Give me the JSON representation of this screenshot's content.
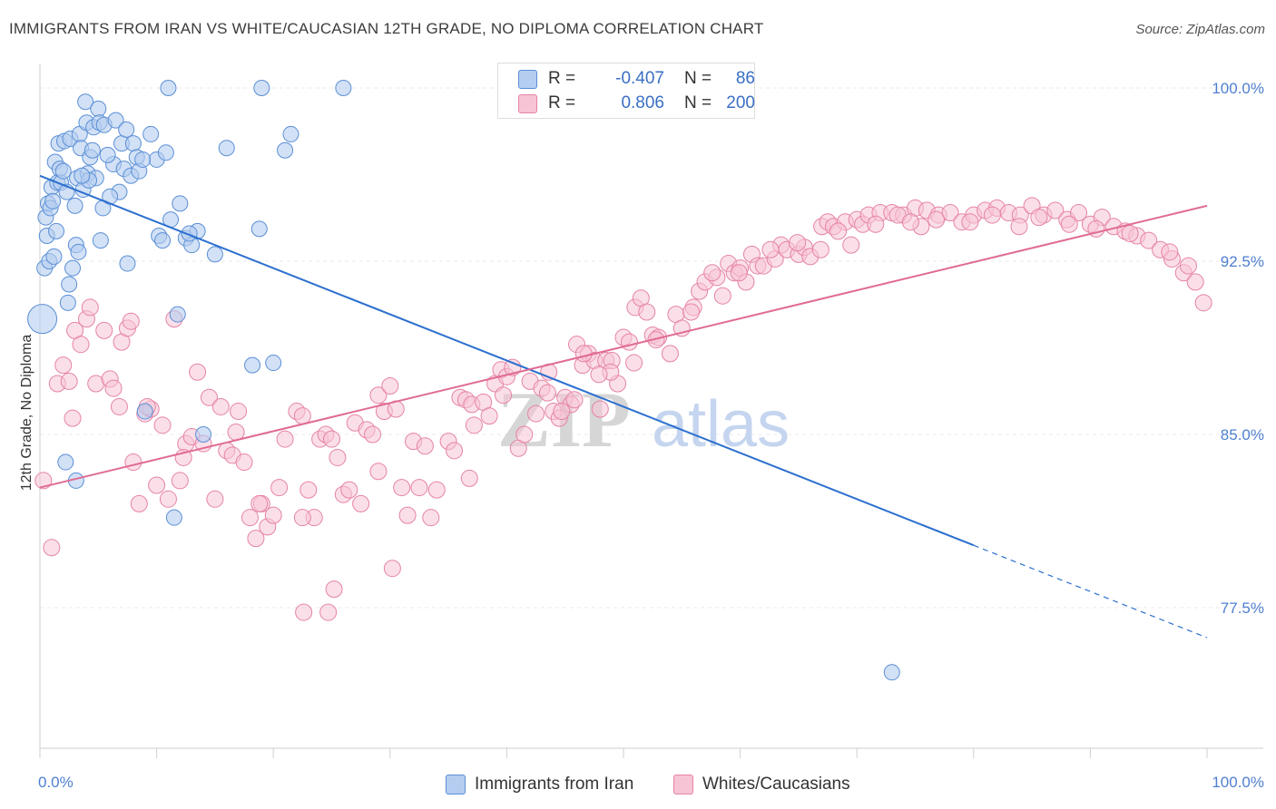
{
  "title": "IMMIGRANTS FROM IRAN VS WHITE/CAUCASIAN 12TH GRADE, NO DIPLOMA CORRELATION CHART",
  "source": "Source: ZipAtlas.com",
  "watermark": {
    "zip": "ZIP",
    "atlas": "atlas"
  },
  "legend": {
    "r_label": "R =",
    "n_label": "N =",
    "series": [
      {
        "name": "Immigrants from Iran",
        "r": "-0.407",
        "n": "86"
      },
      {
        "name": "Whites/Caucasians",
        "r": "0.806",
        "n": "200"
      }
    ]
  },
  "colors": {
    "blue": "#5b8fd6",
    "blue_fill": "#b4cdf0",
    "blue_line": "#2b6fce",
    "pink": "#e583a6",
    "pink_fill": "#f7c4d5",
    "pink_line": "#e06b93",
    "axis_text": "#4f7fd0",
    "grid": "#e8e8e8"
  },
  "chart_data": {
    "type": "scatter",
    "title": "IMMIGRANTS FROM IRAN VS WHITE/CAUCASIAN 12TH GRADE, NO DIPLOMA CORRELATION CHART",
    "xlabel": "",
    "ylabel": "12th Grade, No Diploma",
    "xlim": [
      0,
      100
    ],
    "ylim": [
      71.5,
      101.5
    ],
    "x_tick_labels": [
      "0.0%",
      "100.0%"
    ],
    "y_ticks": [
      77.5,
      85.0,
      92.5,
      100.0
    ],
    "y_tick_labels": [
      "77.5%",
      "85.0%",
      "92.5%",
      "100.0%"
    ],
    "grid": true,
    "legend_position": "top-center",
    "trend_lines": [
      {
        "series": "Immigrants from Iran",
        "x": [
          0,
          80
        ],
        "y": [
          96.2,
          80.2
        ],
        "dashed_extension_to": [
          100,
          76.2
        ]
      },
      {
        "series": "Whites/Caucasians",
        "x": [
          0,
          100
        ],
        "y": [
          82.7,
          94.9
        ]
      }
    ],
    "series": [
      {
        "name": "Immigrants from Iran",
        "points": [
          [
            0.2,
            90.0
          ],
          [
            0.4,
            92.2
          ],
          [
            0.5,
            94.4
          ],
          [
            0.6,
            93.6
          ],
          [
            0.7,
            95.0
          ],
          [
            0.8,
            92.5
          ],
          [
            0.9,
            94.8
          ],
          [
            1.0,
            95.7
          ],
          [
            1.2,
            92.7
          ],
          [
            1.3,
            96.8
          ],
          [
            1.5,
            95.9
          ],
          [
            1.6,
            97.6
          ],
          [
            1.7,
            96.5
          ],
          [
            1.8,
            95.9
          ],
          [
            2.0,
            96.4
          ],
          [
            2.1,
            97.7
          ],
          [
            2.3,
            95.5
          ],
          [
            2.5,
            91.5
          ],
          [
            2.4,
            90.7
          ],
          [
            2.6,
            97.8
          ],
          [
            2.8,
            92.2
          ],
          [
            3.0,
            94.9
          ],
          [
            3.1,
            93.2
          ],
          [
            3.2,
            96.1
          ],
          [
            3.3,
            92.9
          ],
          [
            3.4,
            98.0
          ],
          [
            3.5,
            97.4
          ],
          [
            3.7,
            95.6
          ],
          [
            3.9,
            99.4
          ],
          [
            4.0,
            98.5
          ],
          [
            4.1,
            96.3
          ],
          [
            4.3,
            97.0
          ],
          [
            4.5,
            97.3
          ],
          [
            4.6,
            98.3
          ],
          [
            4.8,
            96.1
          ],
          [
            5.0,
            99.1
          ],
          [
            5.1,
            98.5
          ],
          [
            5.2,
            93.4
          ],
          [
            5.4,
            94.8
          ],
          [
            5.5,
            98.4
          ],
          [
            6.3,
            96.7
          ],
          [
            6.5,
            98.6
          ],
          [
            6.8,
            95.5
          ],
          [
            7.0,
            97.6
          ],
          [
            7.2,
            96.5
          ],
          [
            7.5,
            92.4
          ],
          [
            7.8,
            96.2
          ],
          [
            8.0,
            97.6
          ],
          [
            8.3,
            97.0
          ],
          [
            8.5,
            96.4
          ],
          [
            9.0,
            86.0
          ],
          [
            9.5,
            98.0
          ],
          [
            10.0,
            96.9
          ],
          [
            10.2,
            93.6
          ],
          [
            10.5,
            93.4
          ],
          [
            10.8,
            97.2
          ],
          [
            11.0,
            100.0
          ],
          [
            11.2,
            94.3
          ],
          [
            11.5,
            81.4
          ],
          [
            11.8,
            90.2
          ],
          [
            12.0,
            95.0
          ],
          [
            12.5,
            93.5
          ],
          [
            13.0,
            93.2
          ],
          [
            13.5,
            93.8
          ],
          [
            14.0,
            85.0
          ],
          [
            15.0,
            92.8
          ],
          [
            18.2,
            88.0
          ],
          [
            18.8,
            93.9
          ],
          [
            19.0,
            100.0
          ],
          [
            20.0,
            88.1
          ],
          [
            21.0,
            97.3
          ],
          [
            21.5,
            98.0
          ],
          [
            26.0,
            100.0
          ],
          [
            73.0,
            74.7
          ],
          [
            2.2,
            83.8
          ],
          [
            3.1,
            83.0
          ],
          [
            1.1,
            95.1
          ],
          [
            4.2,
            96.0
          ],
          [
            1.4,
            93.8
          ],
          [
            3.6,
            96.2
          ],
          [
            5.8,
            97.1
          ],
          [
            6.0,
            95.3
          ],
          [
            7.4,
            98.2
          ],
          [
            8.8,
            96.9
          ],
          [
            12.8,
            93.7
          ],
          [
            16.0,
            97.4
          ]
        ]
      },
      {
        "name": "Whites/Caucasians",
        "points": [
          [
            0.3,
            83.0
          ],
          [
            1.0,
            80.1
          ],
          [
            1.5,
            87.2
          ],
          [
            2.0,
            88.0
          ],
          [
            2.5,
            87.3
          ],
          [
            3.0,
            89.5
          ],
          [
            3.5,
            88.9
          ],
          [
            4.0,
            90.0
          ],
          [
            4.3,
            90.5
          ],
          [
            4.8,
            87.2
          ],
          [
            5.5,
            89.5
          ],
          [
            6.0,
            87.4
          ],
          [
            6.3,
            87.0
          ],
          [
            7.0,
            89.0
          ],
          [
            7.5,
            89.6
          ],
          [
            7.8,
            89.9
          ],
          [
            8.0,
            83.8
          ],
          [
            8.5,
            82.0
          ],
          [
            9.0,
            85.9
          ],
          [
            9.5,
            86.1
          ],
          [
            10.0,
            82.8
          ],
          [
            10.5,
            85.4
          ],
          [
            11.0,
            82.2
          ],
          [
            11.5,
            90.0
          ],
          [
            12.0,
            83.0
          ],
          [
            12.5,
            84.6
          ],
          [
            13.0,
            84.9
          ],
          [
            13.5,
            87.7
          ],
          [
            14.0,
            84.6
          ],
          [
            14.5,
            86.6
          ],
          [
            15.0,
            82.2
          ],
          [
            15.5,
            86.2
          ],
          [
            16.0,
            84.3
          ],
          [
            16.5,
            84.1
          ],
          [
            17.0,
            86.0
          ],
          [
            17.5,
            83.8
          ],
          [
            18.0,
            81.4
          ],
          [
            18.5,
            80.5
          ],
          [
            19.0,
            82.0
          ],
          [
            19.5,
            81.0
          ],
          [
            20.0,
            81.5
          ],
          [
            20.5,
            82.7
          ],
          [
            21.0,
            84.8
          ],
          [
            22.0,
            86.0
          ],
          [
            22.5,
            85.8
          ],
          [
            23.0,
            82.6
          ],
          [
            23.5,
            81.4
          ],
          [
            24.0,
            84.8
          ],
          [
            24.5,
            85.0
          ],
          [
            25.0,
            84.8
          ],
          [
            25.5,
            84.0
          ],
          [
            26.0,
            82.4
          ],
          [
            26.5,
            82.6
          ],
          [
            27.0,
            85.5
          ],
          [
            27.5,
            82.0
          ],
          [
            28.0,
            85.2
          ],
          [
            28.5,
            85.0
          ],
          [
            29.0,
            86.7
          ],
          [
            29.5,
            86.0
          ],
          [
            30.0,
            87.1
          ],
          [
            30.5,
            86.1
          ],
          [
            31.0,
            82.7
          ],
          [
            31.5,
            81.5
          ],
          [
            32.0,
            84.7
          ],
          [
            32.5,
            82.7
          ],
          [
            33.0,
            84.5
          ],
          [
            33.5,
            81.4
          ],
          [
            34.0,
            82.6
          ],
          [
            35.0,
            84.7
          ],
          [
            35.5,
            84.3
          ],
          [
            36.0,
            86.6
          ],
          [
            36.5,
            86.5
          ],
          [
            37.0,
            86.3
          ],
          [
            38.0,
            86.4
          ],
          [
            38.5,
            85.8
          ],
          [
            39.0,
            87.2
          ],
          [
            39.5,
            87.8
          ],
          [
            40.0,
            87.5
          ],
          [
            40.5,
            87.9
          ],
          [
            41.0,
            84.4
          ],
          [
            41.5,
            85.0
          ],
          [
            42.0,
            87.3
          ],
          [
            42.5,
            85.9
          ],
          [
            43.0,
            87.0
          ],
          [
            43.5,
            86.8
          ],
          [
            44.0,
            86.0
          ],
          [
            44.5,
            85.7
          ],
          [
            45.0,
            86.6
          ],
          [
            45.5,
            86.3
          ],
          [
            46.0,
            88.9
          ],
          [
            46.5,
            88.0
          ],
          [
            47.0,
            88.5
          ],
          [
            47.5,
            88.2
          ],
          [
            48.0,
            86.1
          ],
          [
            48.5,
            88.2
          ],
          [
            49.0,
            88.2
          ],
          [
            49.5,
            87.2
          ],
          [
            50.0,
            89.2
          ],
          [
            50.5,
            89.0
          ],
          [
            51.0,
            90.5
          ],
          [
            51.5,
            90.9
          ],
          [
            52.0,
            90.3
          ],
          [
            52.5,
            89.3
          ],
          [
            53.0,
            89.2
          ],
          [
            54.0,
            88.5
          ],
          [
            54.5,
            90.2
          ],
          [
            55.0,
            89.6
          ],
          [
            56.0,
            90.5
          ],
          [
            56.5,
            91.2
          ],
          [
            57.0,
            91.6
          ],
          [
            58.0,
            91.8
          ],
          [
            58.5,
            91.0
          ],
          [
            59.0,
            92.4
          ],
          [
            59.5,
            92.0
          ],
          [
            60.0,
            92.2
          ],
          [
            60.5,
            91.6
          ],
          [
            61.0,
            92.8
          ],
          [
            61.5,
            92.3
          ],
          [
            62.0,
            92.3
          ],
          [
            63.0,
            92.6
          ],
          [
            63.5,
            93.2
          ],
          [
            64.0,
            93.0
          ],
          [
            65.0,
            92.8
          ],
          [
            65.5,
            93.1
          ],
          [
            66.0,
            92.7
          ],
          [
            67.0,
            94.0
          ],
          [
            67.5,
            94.2
          ],
          [
            68.0,
            94.0
          ],
          [
            69.0,
            94.2
          ],
          [
            69.5,
            93.2
          ],
          [
            70.0,
            94.3
          ],
          [
            70.5,
            94.1
          ],
          [
            71.0,
            94.5
          ],
          [
            72.0,
            94.6
          ],
          [
            73.0,
            94.6
          ],
          [
            74.0,
            94.5
          ],
          [
            75.0,
            94.8
          ],
          [
            75.5,
            94.0
          ],
          [
            76.0,
            94.7
          ],
          [
            77.0,
            94.5
          ],
          [
            78.0,
            94.6
          ],
          [
            79.0,
            94.2
          ],
          [
            80.0,
            94.5
          ],
          [
            81.0,
            94.7
          ],
          [
            82.0,
            94.8
          ],
          [
            83.0,
            94.6
          ],
          [
            84.0,
            94.5
          ],
          [
            85.0,
            94.9
          ],
          [
            86.0,
            94.5
          ],
          [
            87.0,
            94.7
          ],
          [
            88.0,
            94.3
          ],
          [
            89.0,
            94.6
          ],
          [
            90.0,
            94.1
          ],
          [
            91.0,
            94.4
          ],
          [
            92.0,
            94.0
          ],
          [
            93.0,
            93.8
          ],
          [
            94.0,
            93.6
          ],
          [
            95.0,
            93.4
          ],
          [
            96.0,
            93.0
          ],
          [
            97.0,
            92.6
          ],
          [
            98.0,
            92.0
          ],
          [
            99.0,
            91.6
          ],
          [
            99.7,
            90.7
          ],
          [
            36.8,
            83.1
          ],
          [
            22.6,
            77.3
          ],
          [
            25.2,
            78.3
          ],
          [
            24.7,
            77.3
          ],
          [
            22.5,
            81.4
          ],
          [
            30.2,
            79.2
          ],
          [
            29.0,
            83.4
          ],
          [
            18.8,
            82.0
          ],
          [
            45.8,
            86.5
          ],
          [
            37.2,
            85.4
          ],
          [
            12.3,
            84.0
          ],
          [
            16.8,
            85.1
          ],
          [
            6.8,
            86.2
          ],
          [
            9.2,
            86.2
          ],
          [
            2.8,
            85.7
          ],
          [
            50.9,
            88.1
          ],
          [
            52.8,
            89.1
          ],
          [
            55.8,
            90.3
          ],
          [
            57.6,
            92.0
          ],
          [
            59.9,
            92.0
          ],
          [
            62.6,
            93.0
          ],
          [
            64.9,
            93.3
          ],
          [
            66.9,
            93.0
          ],
          [
            68.4,
            93.8
          ],
          [
            71.6,
            94.1
          ],
          [
            73.5,
            94.5
          ],
          [
            74.6,
            94.2
          ],
          [
            76.8,
            94.3
          ],
          [
            79.7,
            94.2
          ],
          [
            81.6,
            94.5
          ],
          [
            83.9,
            94.0
          ],
          [
            85.6,
            94.4
          ],
          [
            88.2,
            94.1
          ],
          [
            90.5,
            93.9
          ],
          [
            93.4,
            93.7
          ],
          [
            96.8,
            92.9
          ],
          [
            98.4,
            92.3
          ],
          [
            48.9,
            87.7
          ],
          [
            47.9,
            87.6
          ],
          [
            46.6,
            88.5
          ],
          [
            44.7,
            86.0
          ],
          [
            43.6,
            87.7
          ],
          [
            39.7,
            86.7
          ]
        ]
      }
    ]
  }
}
